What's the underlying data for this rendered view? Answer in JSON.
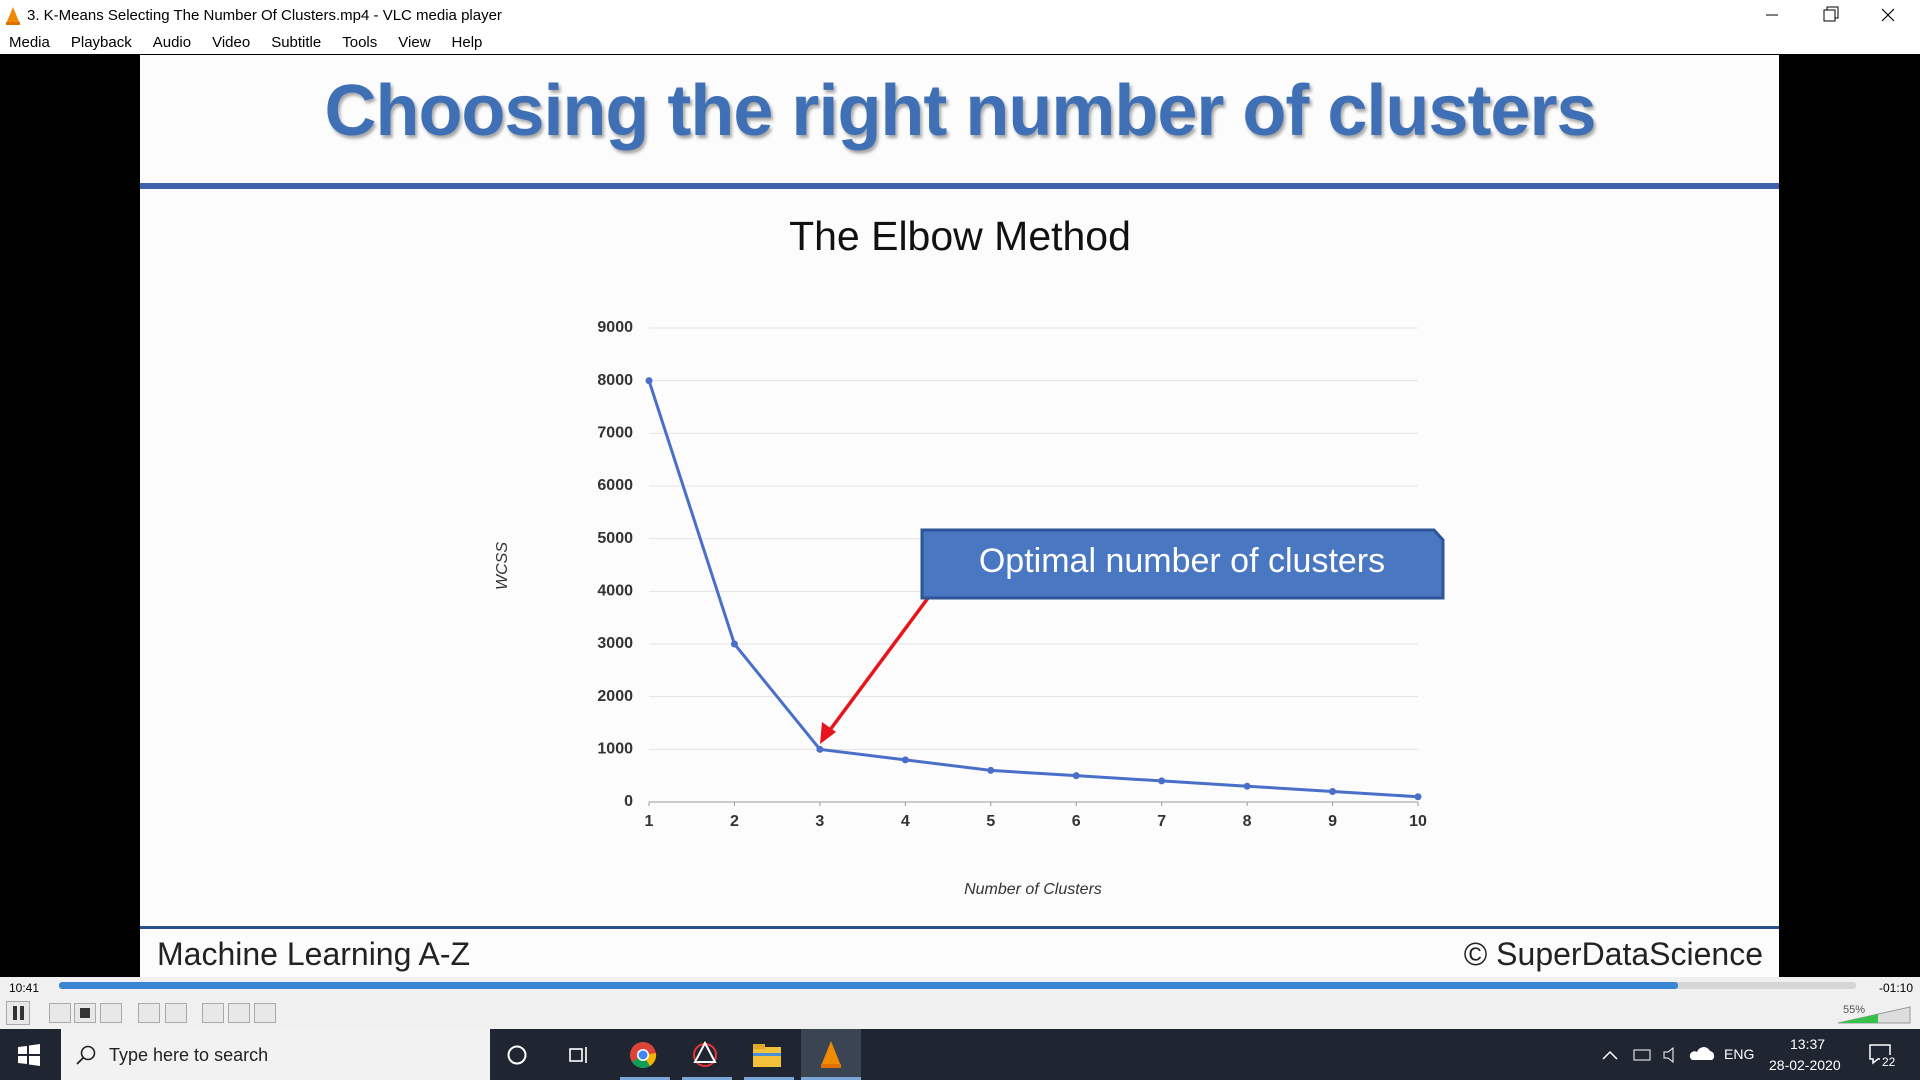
{
  "window": {
    "title": "3. K-Means Selecting The Number Of Clusters.mp4 - VLC media player"
  },
  "menu": [
    "Media",
    "Playback",
    "Audio",
    "Video",
    "Subtitle",
    "Tools",
    "View",
    "Help"
  ],
  "slide": {
    "heading": "Choosing the right number of clusters",
    "footer_left": "Machine Learning A-Z",
    "footer_right": "© SuperDataScience"
  },
  "chart_data": {
    "type": "line",
    "title": "The Elbow Method",
    "x_label": "Number of Clusters",
    "y_label": "WCSS",
    "annotation": "Optimal number of clusters",
    "x": [
      1,
      2,
      3,
      4,
      5,
      6,
      7,
      8,
      9,
      10
    ],
    "values": [
      8000,
      3000,
      1000,
      800,
      600,
      500,
      400,
      300,
      200,
      100
    ],
    "color": "#4a6fc9",
    "xlim": [
      1,
      10
    ],
    "xticks": [
      1,
      2,
      3,
      4,
      5,
      6,
      7,
      8,
      9,
      10
    ],
    "ylim": [
      0,
      9000
    ],
    "yticks": [
      0,
      1000,
      2000,
      3000,
      4000,
      5000,
      6000,
      7000,
      8000,
      9000
    ],
    "grid": true
  },
  "player": {
    "elapsed": "10:41",
    "remaining": "-01:10",
    "volume": "55%"
  },
  "taskbar": {
    "search": "Type here to search",
    "language": "ENG",
    "time": "13:37",
    "date": "28-02-2020",
    "notifications": "22"
  }
}
